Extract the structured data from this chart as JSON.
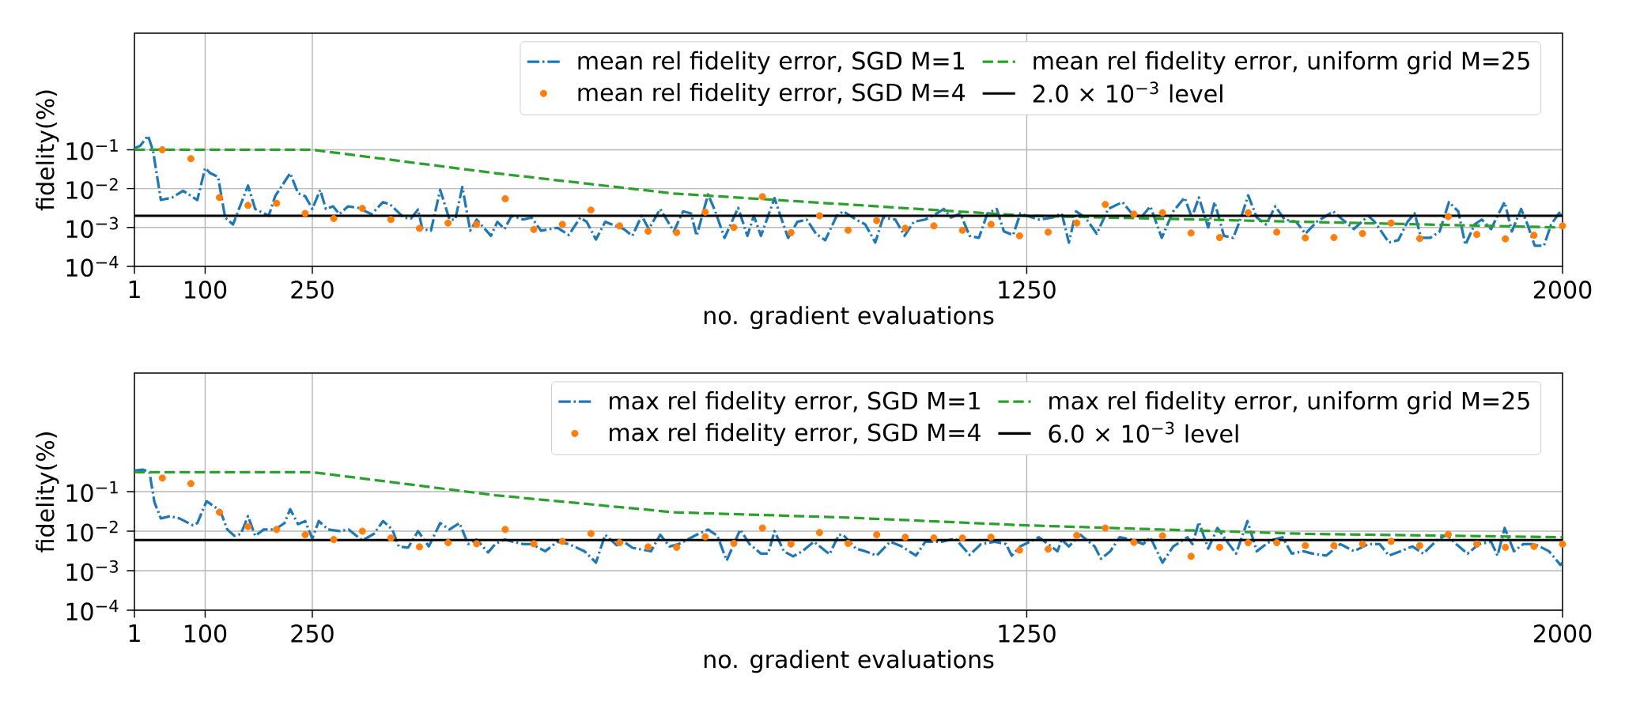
{
  "chart_data": [
    {
      "type": "line",
      "xlabel": "no. gradient evaluations",
      "ylabel": "fidelity(%)",
      "log": true,
      "grid": true,
      "legend": "top right",
      "xlim": [
        1,
        2000
      ],
      "xticks": [
        1,
        100,
        250,
        1250,
        2000
      ],
      "ylim": [
        0.0001,
        100
      ],
      "yticks": [
        {
          "value": 0.0001,
          "label": "10$^{−4}$"
        },
        {
          "value": 0.001,
          "label": "10$^{−3}$"
        },
        {
          "value": 0.01,
          "label": "10$^{−2}$"
        },
        {
          "value": 0.1,
          "label": "10$^{−1}$"
        }
      ],
      "ref_lines": [
        {
          "axis": "y",
          "value": 0.002,
          "label": "2.0 × 10$^{−3}$ level",
          "color": "#000000"
        }
      ],
      "series": [
        {
          "name": "mean rel fidelity error, SGD M=1",
          "type": "line",
          "color": "#1f77b4",
          "line_style": "dashdot",
          "marker": "none",
          "x": [
            1,
            9,
            20,
            27,
            38,
            54,
            69,
            89,
            100,
            107,
            118,
            128,
            139,
            160,
            170,
            189,
            198,
            219,
            230,
            240,
            250,
            261,
            269,
            279,
            288,
            300,
            314,
            333,
            349,
            359,
            378,
            388,
            398,
            404,
            416,
            429,
            442,
            450,
            460,
            471,
            480,
            500,
            509,
            519,
            529,
            545,
            557,
            570,
            593,
            609,
            625,
            634,
            647,
            660,
            686,
            698,
            711,
            721,
            737,
            756,
            769,
            780,
            788,
            804,
            814,
            827,
            846,
            859,
            868,
            878,
            897,
            904,
            916,
            929,
            942,
            955,
            968,
            984,
            993,
            1011,
            1024,
            1038,
            1049,
            1066,
            1079,
            1092,
            1108,
            1124,
            1134,
            1144,
            1157,
            1170,
            1183,
            1195,
            1208,
            1218,
            1231,
            1241,
            1250,
            1267,
            1286,
            1299,
            1309,
            1319,
            1332,
            1348,
            1364,
            1384,
            1397,
            1410,
            1423,
            1439,
            1455,
            1471,
            1481,
            1491,
            1504,
            1513,
            1526,
            1539,
            1549,
            1560,
            1572,
            1585,
            1598,
            1611,
            1627,
            1640,
            1656,
            1679,
            1692,
            1708,
            1728,
            1737,
            1757,
            1770,
            1783,
            1793,
            1802,
            1815,
            1828,
            1841,
            1854,
            1864,
            1877,
            1887,
            1900,
            1909,
            1919,
            1929,
            1942,
            1951,
            1961,
            1974,
            1984,
            1997,
            2000
          ],
          "values": [
            0.11,
            0.126,
            0.23,
            0.095,
            0.0051,
            0.0059,
            0.0088,
            0.0051,
            0.034,
            0.025,
            0.02,
            0.0018,
            0.0012,
            0.012,
            0.003,
            0.002,
            0.0064,
            0.025,
            0.0076,
            0.0064,
            0.003,
            0.0093,
            0.003,
            0.0035,
            0.0022,
            0.0035,
            0.0032,
            0.0022,
            0.0045,
            0.0039,
            0.0018,
            0.0017,
            0.0029,
            0.00091,
            0.00083,
            0.0093,
            0.0016,
            0.0016,
            0.011,
            0.00083,
            0.0016,
            0.00061,
            0.0014,
            0.00091,
            0.002,
            0.0016,
            0.0018,
            0.00083,
            0.00098,
            0.00064,
            0.0018,
            0.0014,
            0.00049,
            0.0014,
            0.00091,
            0.00061,
            0.002,
            0.00091,
            0.003,
            0.00079,
            0.0026,
            0.0023,
            0.00061,
            0.0071,
            0.0026,
            0.00054,
            0.0032,
            0.00061,
            0.002,
            0.00061,
            0.0057,
            0.0023,
            0.00054,
            0.0014,
            0.0016,
            0.00069,
            0.00047,
            0.002,
            0.0026,
            0.0016,
            0.0012,
            0.00041,
            0.0018,
            0.0016,
            0.00061,
            0.0014,
            0.0016,
            0.0023,
            0.003,
            0.0018,
            0.0023,
            0.00061,
            0.00054,
            0.0023,
            0.003,
            0.00079,
            0.00064,
            0.0023,
            0.002,
            0.0016,
            0.0018,
            0.0023,
            0.00041,
            0.0026,
            0.0018,
            0.00069,
            0.003,
            0.0045,
            0.0023,
            0.0018,
            0.0035,
            0.00054,
            0.0026,
            0.0059,
            0.0018,
            0.0059,
            0.001,
            0.0045,
            0.00061,
            0.00054,
            0.0016,
            0.0067,
            0.0018,
            0.0012,
            0.0035,
            0.0016,
            0.0014,
            0.00069,
            0.0014,
            0.0026,
            0.0016,
            0.00091,
            0.002,
            0.0014,
            0.00041,
            0.00047,
            0.0014,
            0.0023,
            0.00054,
            0.00054,
            0.00079,
            0.0045,
            0.0026,
            0.00036,
            0.0012,
            0.0016,
            0.00091,
            0.002,
            0.0045,
            0.00079,
            0.003,
            0.0012,
            0.00034,
            0.00034,
            0.0012,
            0.0026,
            0.0018
          ]
        },
        {
          "name": "mean rel fidelity error, SGD M=4",
          "type": "scatter",
          "color": "#ff7f0e",
          "marker": "circle",
          "x": [
            40,
            80,
            120,
            160,
            200,
            240,
            280,
            320,
            360,
            400,
            440,
            480,
            520,
            560,
            600,
            640,
            680,
            720,
            760,
            800,
            840,
            880,
            920,
            960,
            1000,
            1040,
            1080,
            1120,
            1160,
            1200,
            1240,
            1280,
            1320,
            1360,
            1400,
            1440,
            1480,
            1520,
            1560,
            1600,
            1640,
            1680,
            1720,
            1760,
            1800,
            1840,
            1880,
            1920,
            1960,
            2000
          ],
          "values": [
            0.1,
            0.059,
            0.0059,
            0.0037,
            0.0042,
            0.0023,
            0.0017,
            0.0031,
            0.0016,
            0.00095,
            0.0013,
            0.0012,
            0.0055,
            0.00089,
            0.0012,
            0.0028,
            0.0011,
            0.0008,
            0.00074,
            0.0025,
            0.001,
            0.0062,
            0.00073,
            0.002,
            0.00085,
            0.0015,
            0.00095,
            0.0011,
            0.00085,
            0.0012,
            0.00061,
            0.00076,
            0.0013,
            0.0039,
            0.0022,
            0.0024,
            0.00072,
            0.00055,
            0.0024,
            0.00076,
            0.00054,
            0.00055,
            0.0007,
            0.0013,
            0.00052,
            0.0019,
            0.00066,
            0.00051,
            0.00063,
            0.0011
          ]
        },
        {
          "name": "mean rel fidelity error, uniform grid M=25",
          "type": "line",
          "color": "#2ca02c",
          "line_style": "dashed",
          "marker": "none",
          "x": [
            1,
            250,
            506,
            755,
            1000,
            1250,
            2000
          ],
          "values": [
            0.1,
            0.1,
            0.025,
            0.0075,
            0.0039,
            0.002,
            0.001
          ]
        }
      ]
    },
    {
      "type": "line",
      "xlabel": "no. gradient evaluations",
      "ylabel": "fidelity(%)",
      "log": true,
      "grid": true,
      "legend": "top right",
      "xlim": [
        1,
        2000
      ],
      "xticks": [
        1,
        100,
        250,
        1250,
        2000
      ],
      "ylim": [
        0.0001,
        100
      ],
      "yticks": [
        {
          "value": 0.0001,
          "label": "10$^{−4}$"
        },
        {
          "value": 0.001,
          "label": "10$^{−3}$"
        },
        {
          "value": 0.01,
          "label": "10$^{−2}$"
        },
        {
          "value": 0.1,
          "label": "10$^{−1}$"
        }
      ],
      "ref_lines": [
        {
          "axis": "y",
          "value": 0.006,
          "label": "6.0 × 10$^{−3}$ level",
          "color": "#000000"
        }
      ],
      "series": [
        {
          "name": "max rel fidelity error, SGD M=1",
          "type": "line",
          "color": "#1f77b4",
          "line_style": "dashdot",
          "marker": "none",
          "x": [
            1,
            13,
            22,
            29,
            38,
            51,
            64,
            83,
            89,
            102,
            121,
            131,
            141,
            150,
            160,
            170,
            182,
            198,
            211,
            219,
            230,
            240,
            250,
            259,
            272,
            288,
            301,
            320,
            336,
            349,
            362,
            371,
            384,
            398,
            413,
            429,
            442,
            456,
            468,
            480,
            496,
            506,
            519,
            545,
            557,
            576,
            593,
            609,
            631,
            647,
            660,
            676,
            686,
            698,
            724,
            737,
            750,
            763,
            788,
            804,
            817,
            830,
            849,
            862,
            878,
            888,
            897,
            910,
            923,
            936,
            952,
            974,
            987,
            993,
            1011,
            1024,
            1040,
            1059,
            1075,
            1095,
            1108,
            1131,
            1150,
            1170,
            1186,
            1205,
            1221,
            1229,
            1241,
            1267,
            1280,
            1293,
            1299,
            1309,
            1325,
            1345,
            1354,
            1367,
            1380,
            1397,
            1413,
            1423,
            1440,
            1455,
            1475,
            1482,
            1491,
            1504,
            1517,
            1533,
            1543,
            1559,
            1572,
            1585,
            1595,
            1608,
            1621,
            1637,
            1650,
            1669,
            1689,
            1708,
            1728,
            1744,
            1757,
            1773,
            1790,
            1805,
            1825,
            1838,
            1851,
            1867,
            1883,
            1900,
            1909,
            1919,
            1932,
            1945,
            1961,
            1981,
            1997,
            2000
          ],
          "values": [
            0.34,
            0.36,
            0.31,
            0.054,
            0.021,
            0.024,
            0.021,
            0.014,
            0.016,
            0.057,
            0.033,
            0.011,
            0.0076,
            0.0085,
            0.024,
            0.0076,
            0.011,
            0.011,
            0.016,
            0.036,
            0.015,
            0.018,
            0.0065,
            0.018,
            0.011,
            0.01,
            0.011,
            0.0058,
            0.0085,
            0.018,
            0.011,
            0.0041,
            0.0038,
            0.01,
            0.0041,
            0.016,
            0.011,
            0.016,
            0.0047,
            0.0061,
            0.0029,
            0.0047,
            0.0061,
            0.0047,
            0.0047,
            0.0031,
            0.0054,
            0.0047,
            0.0031,
            0.0016,
            0.0081,
            0.0044,
            0.0054,
            0.0038,
            0.0031,
            0.0081,
            0.0041,
            0.0047,
            0.0081,
            0.011,
            0.0076,
            0.0018,
            0.011,
            0.0047,
            0.0027,
            0.0027,
            0.01,
            0.0031,
            0.0023,
            0.0031,
            0.0054,
            0.0026,
            0.0081,
            0.0081,
            0.0036,
            0.0031,
            0.0024,
            0.0054,
            0.0041,
            0.0024,
            0.0054,
            0.0054,
            0.0065,
            0.0025,
            0.0047,
            0.0054,
            0.0047,
            0.0024,
            0.0041,
            0.007,
            0.0047,
            0.0031,
            0.0061,
            0.0041,
            0.0081,
            0.0041,
            0.002,
            0.0031,
            0.007,
            0.0061,
            0.0047,
            0.007,
            0.0016,
            0.0041,
            0.007,
            0.0047,
            0.017,
            0.0036,
            0.012,
            0.0047,
            0.0027,
            0.018,
            0.0031,
            0.0047,
            0.0061,
            0.007,
            0.0027,
            0.0031,
            0.0027,
            0.0024,
            0.0047,
            0.0031,
            0.0047,
            0.0047,
            0.0024,
            0.0031,
            0.0041,
            0.0027,
            0.0061,
            0.0081,
            0.0047,
            0.0027,
            0.0047,
            0.0054,
            0.0024,
            0.012,
            0.0031,
            0.0047,
            0.0047,
            0.0031,
            0.0014,
            0.0016
          ]
        },
        {
          "name": "max rel fidelity error, SGD M=4",
          "type": "scatter",
          "color": "#ff7f0e",
          "marker": "circle",
          "x": [
            40,
            80,
            120,
            160,
            200,
            240,
            280,
            320,
            360,
            400,
            440,
            480,
            520,
            560,
            600,
            640,
            680,
            720,
            760,
            800,
            840,
            880,
            920,
            960,
            1000,
            1040,
            1080,
            1120,
            1160,
            1200,
            1240,
            1280,
            1320,
            1360,
            1400,
            1440,
            1480,
            1520,
            1560,
            1600,
            1640,
            1680,
            1720,
            1760,
            1800,
            1840,
            1880,
            1920,
            1960,
            2000
          ],
          "values": [
            0.22,
            0.16,
            0.03,
            0.013,
            0.011,
            0.0081,
            0.0061,
            0.01,
            0.0067,
            0.004,
            0.0051,
            0.0048,
            0.011,
            0.0048,
            0.0055,
            0.0087,
            0.0051,
            0.004,
            0.0039,
            0.0072,
            0.0049,
            0.012,
            0.0047,
            0.0092,
            0.0049,
            0.0081,
            0.007,
            0.0067,
            0.0067,
            0.007,
            0.0033,
            0.0035,
            0.0078,
            0.012,
            0.0052,
            0.0076,
            0.0023,
            0.0039,
            0.0051,
            0.0051,
            0.0043,
            0.0043,
            0.0047,
            0.0055,
            0.0043,
            0.0083,
            0.0047,
            0.0039,
            0.0041,
            0.0047
          ]
        },
        {
          "name": "max rel fidelity error, uniform grid M=25",
          "type": "line",
          "color": "#2ca02c",
          "line_style": "dashed",
          "marker": "none",
          "x": [
            1,
            250,
            506,
            756,
            1000,
            1250,
            1643,
            2000
          ],
          "values": [
            0.31,
            0.31,
            0.081,
            0.03,
            0.022,
            0.014,
            0.0085,
            0.007
          ]
        }
      ]
    }
  ]
}
